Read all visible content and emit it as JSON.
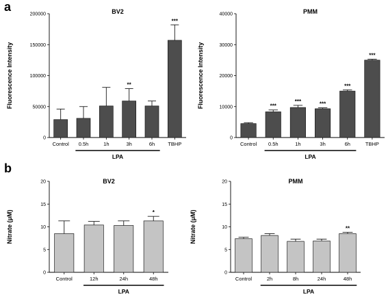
{
  "panels": {
    "a": "a",
    "b": "b"
  },
  "colors": {
    "dark_bar": "#4d4d4d",
    "light_bar": "#c4c4c4",
    "axis": "#000000"
  },
  "chart_data": [
    {
      "type": "bar",
      "panel": "a",
      "title": "BV2",
      "ylabel": "Fluorescence Intensity",
      "categories": [
        "Control",
        "0.5h",
        "1h",
        "3h",
        "6h",
        "TBHP"
      ],
      "values": [
        29000,
        31000,
        51000,
        59000,
        51000,
        157000
      ],
      "errors": [
        17000,
        19000,
        30000,
        20000,
        8000,
        25000
      ],
      "significance": [
        "",
        "",
        "",
        "**",
        "",
        "***"
      ],
      "ylim": [
        0,
        200000
      ],
      "yticks": [
        0,
        50000,
        100000,
        150000,
        200000
      ],
      "group_label": "LPA",
      "group_span": [
        1,
        4
      ],
      "bar_color": "dark"
    },
    {
      "type": "bar",
      "panel": "a",
      "title": "PMM",
      "ylabel": "Fluorescence Intensity",
      "categories": [
        "Control",
        "0.5h",
        "1h",
        "3h",
        "6h",
        "TBHP"
      ],
      "values": [
        4500,
        8300,
        9700,
        9300,
        15000,
        25000
      ],
      "errors": [
        300,
        600,
        700,
        300,
        400,
        300
      ],
      "significance": [
        "",
        "***",
        "***",
        "***",
        "***",
        "***"
      ],
      "ylim": [
        0,
        40000
      ],
      "yticks": [
        0,
        10000,
        20000,
        30000,
        40000
      ],
      "group_label": "LPA",
      "group_span": [
        1,
        4
      ],
      "bar_color": "dark"
    },
    {
      "type": "bar",
      "panel": "b",
      "title": "BV2",
      "ylabel": "Nitrate (μM)",
      "categories": [
        "Control",
        "12h",
        "24h",
        "48h"
      ],
      "values": [
        8.5,
        10.4,
        10.3,
        11.3
      ],
      "errors": [
        2.8,
        0.8,
        1.0,
        1.0
      ],
      "significance": [
        "",
        "",
        "",
        "*"
      ],
      "ylim": [
        0,
        20
      ],
      "yticks": [
        0,
        5,
        10,
        15,
        20
      ],
      "group_label": "LPA",
      "group_span": [
        1,
        3
      ],
      "bar_color": "light"
    },
    {
      "type": "bar",
      "panel": "b",
      "title": "PMM",
      "ylabel": "Nitrate (μM)",
      "categories": [
        "Control",
        "2h",
        "8h",
        "24h",
        "48h"
      ],
      "values": [
        7.4,
        8.1,
        6.8,
        6.9,
        8.5
      ],
      "errors": [
        0.3,
        0.4,
        0.5,
        0.4,
        0.3
      ],
      "significance": [
        "",
        "",
        "",
        "",
        "**"
      ],
      "ylim": [
        0,
        20
      ],
      "yticks": [
        0,
        5,
        10,
        15,
        20
      ],
      "group_label": "LPA",
      "group_span": [
        1,
        4
      ],
      "bar_color": "light"
    }
  ]
}
